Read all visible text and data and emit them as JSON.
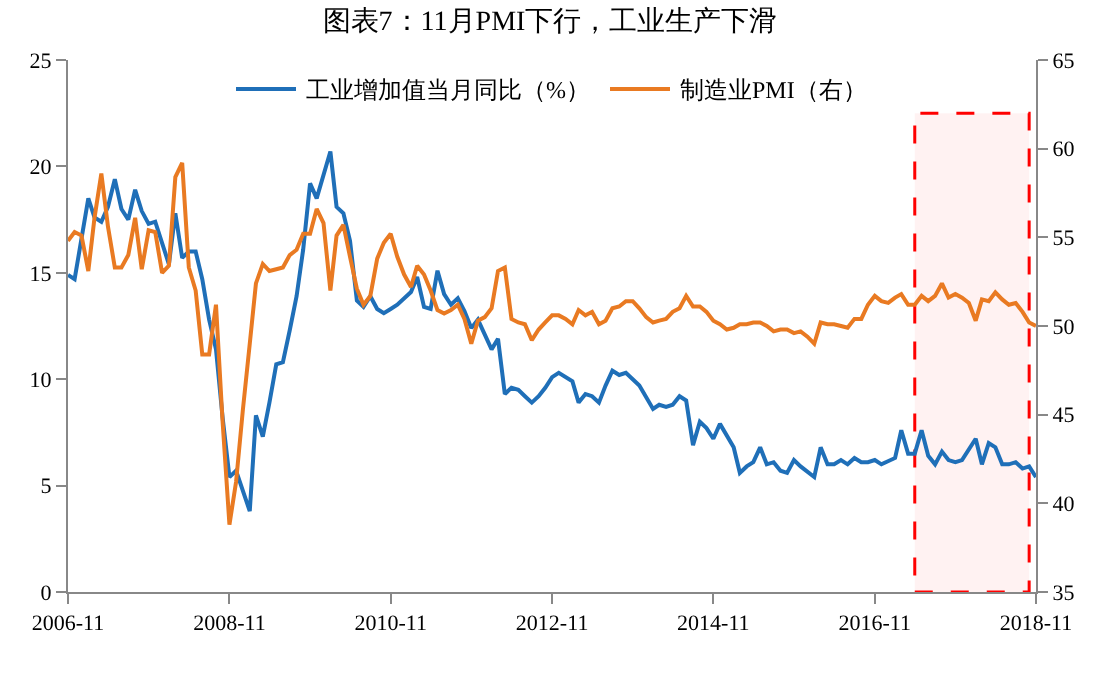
{
  "chart_data": {
    "type": "line",
    "title": "图表7：11月PMI下行，工业生产下滑",
    "legend": "top",
    "grid": false,
    "marker": "none",
    "line_style": "solid",
    "xlim": [
      "2006-11",
      "2018-11"
    ],
    "xticks": [
      "2006-11",
      "2008-11",
      "2010-11",
      "2012-11",
      "2014-11",
      "2016-11",
      "2018-11"
    ],
    "ylim": [
      0,
      25
    ],
    "yticks": [
      0,
      5,
      10,
      15,
      20,
      25
    ],
    "y2lim": [
      35,
      65
    ],
    "y2ticks": [
      35,
      40,
      45,
      50,
      55,
      60,
      65
    ],
    "bands": [
      {
        "axis": "x",
        "from": "2017-05",
        "to": "2018-10",
        "color": "#ff0000"
      }
    ],
    "series": [
      {
        "name": "工业增加值当月同比（%）",
        "color": "#1f6fb8",
        "x": [
          "2006-11",
          "2006-12",
          "2007-02",
          "2007-03",
          "2007-04",
          "2007-05",
          "2007-06",
          "2007-07",
          "2007-08",
          "2007-09",
          "2007-10",
          "2007-11",
          "2007-12",
          "2008-02",
          "2008-03",
          "2008-04",
          "2008-05",
          "2008-06",
          "2008-07",
          "2008-08",
          "2008-09",
          "2008-10",
          "2008-11",
          "2008-12",
          "2009-02",
          "2009-03",
          "2009-04",
          "2009-05",
          "2009-06",
          "2009-07",
          "2009-08",
          "2009-09",
          "2009-10",
          "2009-11",
          "2009-12",
          "2010-02",
          "2010-03",
          "2010-04",
          "2010-05",
          "2010-06",
          "2010-07",
          "2010-08",
          "2010-09",
          "2010-10",
          "2010-11",
          "2010-12",
          "2011-02",
          "2011-03",
          "2011-04",
          "2011-05",
          "2011-06",
          "2011-07",
          "2011-08",
          "2011-09",
          "2011-10",
          "2011-11",
          "2011-12",
          "2012-02",
          "2012-03",
          "2012-04",
          "2012-05",
          "2012-06",
          "2012-07",
          "2012-08",
          "2012-09",
          "2012-10",
          "2012-11",
          "2012-12",
          "2013-02",
          "2013-03",
          "2013-04",
          "2013-05",
          "2013-06",
          "2013-07",
          "2013-08",
          "2013-09",
          "2013-10",
          "2013-11",
          "2013-12",
          "2014-02",
          "2014-03",
          "2014-04",
          "2014-05",
          "2014-06",
          "2014-07",
          "2014-08",
          "2014-09",
          "2014-10",
          "2014-11",
          "2014-12",
          "2015-02",
          "2015-03",
          "2015-04",
          "2015-05",
          "2015-06",
          "2015-07",
          "2015-08",
          "2015-09",
          "2015-10",
          "2015-11",
          "2015-12",
          "2016-02",
          "2016-03",
          "2016-04",
          "2016-05",
          "2016-06",
          "2016-07",
          "2016-08",
          "2016-09",
          "2016-10",
          "2016-11",
          "2016-12",
          "2017-02",
          "2017-03",
          "2017-04",
          "2017-05",
          "2017-06",
          "2017-07",
          "2017-08",
          "2017-09",
          "2017-10",
          "2017-11",
          "2017-12",
          "2018-02",
          "2018-03",
          "2018-04",
          "2018-05",
          "2018-06",
          "2018-07",
          "2018-08",
          "2018-09",
          "2018-10",
          "2018-11"
        ],
        "values": [
          14.9,
          14.7,
          18.5,
          17.6,
          17.4,
          18.1,
          19.4,
          18.0,
          17.5,
          18.9,
          17.9,
          17.3,
          17.4,
          15.4,
          17.8,
          15.7,
          16.0,
          16.0,
          14.7,
          12.8,
          11.4,
          8.2,
          5.4,
          5.7,
          3.8,
          8.3,
          7.3,
          8.9,
          10.7,
          10.8,
          12.3,
          13.9,
          16.1,
          19.2,
          18.5,
          20.7,
          18.1,
          17.8,
          16.5,
          13.7,
          13.4,
          13.9,
          13.3,
          13.1,
          13.3,
          13.5,
          14.1,
          14.8,
          13.4,
          13.3,
          15.1,
          14.0,
          13.5,
          13.8,
          13.2,
          12.4,
          12.8,
          11.4,
          11.9,
          9.3,
          9.6,
          9.5,
          9.2,
          8.9,
          9.2,
          9.6,
          10.1,
          10.3,
          9.9,
          8.9,
          9.3,
          9.2,
          8.9,
          9.7,
          10.4,
          10.2,
          10.3,
          10.0,
          9.7,
          8.6,
          8.8,
          8.7,
          8.8,
          9.2,
          9.0,
          6.9,
          8.0,
          7.7,
          7.2,
          7.9,
          6.8,
          5.6,
          5.9,
          6.1,
          6.8,
          6.0,
          6.1,
          5.7,
          5.6,
          6.2,
          5.9,
          5.4,
          6.8,
          6.0,
          6.0,
          6.2,
          6.0,
          6.3,
          6.1,
          6.1,
          6.2,
          6.0,
          6.3,
          7.6,
          6.5,
          6.5,
          7.6,
          6.4,
          6.0,
          6.6,
          6.2,
          6.1,
          6.2,
          7.2,
          6.0,
          7.0,
          6.8,
          6.0,
          6.0,
          6.1,
          5.8,
          5.9,
          5.4
        ]
      },
      {
        "name": "制造业PMI（右）",
        "color": "#e97a22",
        "axis": "y2",
        "x": [
          "2006-11",
          "2006-12",
          "2007-01",
          "2007-02",
          "2007-03",
          "2007-04",
          "2007-05",
          "2007-06",
          "2007-07",
          "2007-08",
          "2007-09",
          "2007-10",
          "2007-11",
          "2007-12",
          "2008-01",
          "2008-02",
          "2008-03",
          "2008-04",
          "2008-05",
          "2008-06",
          "2008-07",
          "2008-08",
          "2008-09",
          "2008-10",
          "2008-11",
          "2008-12",
          "2009-01",
          "2009-02",
          "2009-03",
          "2009-04",
          "2009-05",
          "2009-06",
          "2009-07",
          "2009-08",
          "2009-09",
          "2009-10",
          "2009-11",
          "2009-12",
          "2010-01",
          "2010-02",
          "2010-03",
          "2010-04",
          "2010-05",
          "2010-06",
          "2010-07",
          "2010-08",
          "2010-09",
          "2010-10",
          "2010-11",
          "2010-12",
          "2011-01",
          "2011-02",
          "2011-03",
          "2011-04",
          "2011-05",
          "2011-06",
          "2011-07",
          "2011-08",
          "2011-09",
          "2011-10",
          "2011-11",
          "2011-12",
          "2012-01",
          "2012-02",
          "2012-03",
          "2012-04",
          "2012-05",
          "2012-06",
          "2012-07",
          "2012-08",
          "2012-09",
          "2012-10",
          "2012-11",
          "2012-12",
          "2013-01",
          "2013-02",
          "2013-03",
          "2013-04",
          "2013-05",
          "2013-06",
          "2013-07",
          "2013-08",
          "2013-09",
          "2013-10",
          "2013-11",
          "2013-12",
          "2014-01",
          "2014-02",
          "2014-03",
          "2014-04",
          "2014-05",
          "2014-06",
          "2014-07",
          "2014-08",
          "2014-09",
          "2014-10",
          "2014-11",
          "2014-12",
          "2015-01",
          "2015-02",
          "2015-03",
          "2015-04",
          "2015-05",
          "2015-06",
          "2015-07",
          "2015-08",
          "2015-09",
          "2015-10",
          "2015-11",
          "2015-12",
          "2016-01",
          "2016-02",
          "2016-03",
          "2016-04",
          "2016-05",
          "2016-06",
          "2016-07",
          "2016-08",
          "2016-09",
          "2016-10",
          "2016-11",
          "2016-12",
          "2017-01",
          "2017-02",
          "2017-03",
          "2017-04",
          "2017-05",
          "2017-06",
          "2017-07",
          "2017-08",
          "2017-09",
          "2017-10",
          "2017-11",
          "2017-12",
          "2018-01",
          "2018-02",
          "2018-03",
          "2018-04",
          "2018-05",
          "2018-06",
          "2018-07",
          "2018-08",
          "2018-09",
          "2018-10",
          "2018-11"
        ],
        "values": [
          54.8,
          55.3,
          55.1,
          53.1,
          56.1,
          58.6,
          55.6,
          53.3,
          53.3,
          54.0,
          56.1,
          53.2,
          55.4,
          55.3,
          53.0,
          53.4,
          58.4,
          59.2,
          53.3,
          52.0,
          48.4,
          48.4,
          51.2,
          44.6,
          38.8,
          41.2,
          45.3,
          49.0,
          52.4,
          53.5,
          53.1,
          53.2,
          53.3,
          54.0,
          54.3,
          55.2,
          55.2,
          56.6,
          55.8,
          52.0,
          55.1,
          55.7,
          53.9,
          52.1,
          51.2,
          51.7,
          53.8,
          54.7,
          55.2,
          53.9,
          52.9,
          52.2,
          53.4,
          52.9,
          52.0,
          50.9,
          50.7,
          50.9,
          51.2,
          50.4,
          49.0,
          50.3,
          50.5,
          51.0,
          53.1,
          53.3,
          50.4,
          50.2,
          50.1,
          49.2,
          49.8,
          50.2,
          50.6,
          50.6,
          50.4,
          50.1,
          50.9,
          50.6,
          50.8,
          50.1,
          50.3,
          51.0,
          51.1,
          51.4,
          51.4,
          51.0,
          50.5,
          50.2,
          50.3,
          50.4,
          50.8,
          51.0,
          51.7,
          51.1,
          51.1,
          50.8,
          50.3,
          50.1,
          49.8,
          49.9,
          50.1,
          50.1,
          50.2,
          50.2,
          50.0,
          49.7,
          49.8,
          49.8,
          49.6,
          49.7,
          49.4,
          49.0,
          50.2,
          50.1,
          50.1,
          50.0,
          49.9,
          50.4,
          50.4,
          51.2,
          51.7,
          51.4,
          51.3,
          51.6,
          51.8,
          51.2,
          51.2,
          51.7,
          51.4,
          51.7,
          52.4,
          51.6,
          51.8,
          51.6,
          51.3,
          50.3,
          51.5,
          51.4,
          51.9,
          51.5,
          51.2,
          51.3,
          50.8,
          50.2,
          50.0
        ]
      }
    ]
  }
}
